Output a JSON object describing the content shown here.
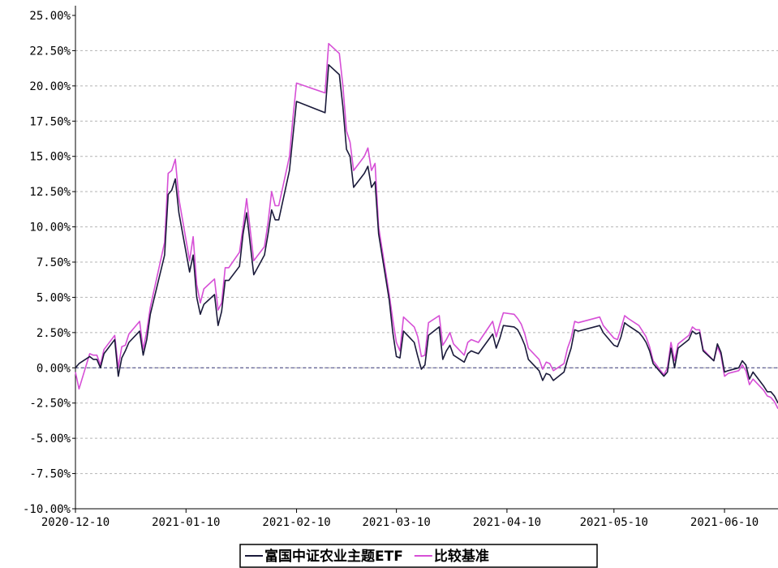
{
  "chart_data": {
    "type": "line",
    "title": "",
    "xlabel": "",
    "ylabel": "",
    "x_range": [
      "2020-12-10",
      "2021-06-25"
    ],
    "ylim": [
      -10,
      25
    ],
    "y_tick_labels": [
      "25.00%",
      "22.50%",
      "20.00%",
      "17.50%",
      "15.00%",
      "12.50%",
      "10.00%",
      "7.50%",
      "5.00%",
      "2.50%",
      "0.00%",
      "-2.50%",
      "-5.00%",
      "-7.50%",
      "-10.00%"
    ],
    "x_tick_labels": [
      "2020-12-10",
      "2021-01-10",
      "2021-02-10",
      "2021-03-10",
      "2021-04-10",
      "2021-05-10",
      "2021-06-10"
    ],
    "grid": true,
    "legend_position": "bottom-center",
    "series": [
      {
        "name": "富国中证农业主题ETF",
        "color": "#1a1a3a",
        "points": [
          [
            "2020-12-10",
            0.0
          ],
          [
            "2020-12-11",
            0.3
          ],
          [
            "2020-12-14",
            0.8
          ],
          [
            "2020-12-15",
            0.6
          ],
          [
            "2020-12-16",
            0.6
          ],
          [
            "2020-12-17",
            0.0
          ],
          [
            "2020-12-18",
            1.0
          ],
          [
            "2020-12-21",
            2.0
          ],
          [
            "2020-12-22",
            -0.6
          ],
          [
            "2020-12-23",
            0.7
          ],
          [
            "2020-12-24",
            1.2
          ],
          [
            "2020-12-25",
            1.8
          ],
          [
            "2020-12-28",
            2.6
          ],
          [
            "2020-12-29",
            0.9
          ],
          [
            "2020-12-30",
            2.0
          ],
          [
            "2020-12-31",
            3.8
          ],
          [
            "2021-01-04",
            8.0
          ],
          [
            "2021-01-05",
            12.3
          ],
          [
            "2021-01-06",
            12.6
          ],
          [
            "2021-01-07",
            13.4
          ],
          [
            "2021-01-08",
            11.0
          ],
          [
            "2021-01-11",
            6.8
          ],
          [
            "2021-01-12",
            8.0
          ],
          [
            "2021-01-13",
            5.0
          ],
          [
            "2021-01-14",
            3.8
          ],
          [
            "2021-01-15",
            4.5
          ],
          [
            "2021-01-18",
            5.2
          ],
          [
            "2021-01-19",
            3.0
          ],
          [
            "2021-01-20",
            4.0
          ],
          [
            "2021-01-21",
            6.2
          ],
          [
            "2021-01-22",
            6.2
          ],
          [
            "2021-01-25",
            7.2
          ],
          [
            "2021-01-26",
            9.5
          ],
          [
            "2021-01-27",
            11.0
          ],
          [
            "2021-01-28",
            8.8
          ],
          [
            "2021-01-29",
            6.6
          ],
          [
            "2021-02-01",
            8.0
          ],
          [
            "2021-02-02",
            9.5
          ],
          [
            "2021-02-03",
            11.2
          ],
          [
            "2021-02-04",
            10.5
          ],
          [
            "2021-02-05",
            10.5
          ],
          [
            "2021-02-08",
            14.0
          ],
          [
            "2021-02-09",
            16.5
          ],
          [
            "2021-02-10",
            18.9
          ],
          [
            "2021-02-18",
            18.1
          ],
          [
            "2021-02-19",
            21.5
          ],
          [
            "2021-02-22",
            20.8
          ],
          [
            "2021-02-23",
            18.5
          ],
          [
            "2021-02-24",
            15.5
          ],
          [
            "2021-02-25",
            15.0
          ],
          [
            "2021-02-26",
            12.8
          ],
          [
            "2021-03-01",
            13.8
          ],
          [
            "2021-03-02",
            14.3
          ],
          [
            "2021-03-03",
            12.8
          ],
          [
            "2021-03-04",
            13.2
          ],
          [
            "2021-03-05",
            9.5
          ],
          [
            "2021-03-08",
            4.8
          ],
          [
            "2021-03-09",
            2.5
          ],
          [
            "2021-03-10",
            0.8
          ],
          [
            "2021-03-11",
            0.7
          ],
          [
            "2021-03-12",
            2.6
          ],
          [
            "2021-03-15",
            1.8
          ],
          [
            "2021-03-16",
            0.8
          ],
          [
            "2021-03-17",
            -0.1
          ],
          [
            "2021-03-18",
            0.2
          ],
          [
            "2021-03-19",
            2.3
          ],
          [
            "2021-03-22",
            2.9
          ],
          [
            "2021-03-23",
            0.6
          ],
          [
            "2021-03-24",
            1.2
          ],
          [
            "2021-03-25",
            1.6
          ],
          [
            "2021-03-26",
            0.9
          ],
          [
            "2021-03-29",
            0.4
          ],
          [
            "2021-03-30",
            1.0
          ],
          [
            "2021-03-31",
            1.2
          ],
          [
            "2021-04-01",
            1.1
          ],
          [
            "2021-04-02",
            1.0
          ],
          [
            "2021-04-06",
            2.4
          ],
          [
            "2021-04-07",
            1.4
          ],
          [
            "2021-04-08",
            2.1
          ],
          [
            "2021-04-09",
            3.0
          ],
          [
            "2021-04-12",
            2.9
          ],
          [
            "2021-04-13",
            2.7
          ],
          [
            "2021-04-14",
            2.2
          ],
          [
            "2021-04-15",
            1.6
          ],
          [
            "2021-04-16",
            0.6
          ],
          [
            "2021-04-19",
            -0.2
          ],
          [
            "2021-04-20",
            -0.9
          ],
          [
            "2021-04-21",
            -0.4
          ],
          [
            "2021-04-22",
            -0.5
          ],
          [
            "2021-04-23",
            -0.9
          ],
          [
            "2021-04-26",
            -0.3
          ],
          [
            "2021-04-27",
            0.6
          ],
          [
            "2021-04-28",
            1.4
          ],
          [
            "2021-04-29",
            2.7
          ],
          [
            "2021-04-30",
            2.6
          ],
          [
            "2021-05-06",
            3.0
          ],
          [
            "2021-05-07",
            2.5
          ],
          [
            "2021-05-10",
            1.6
          ],
          [
            "2021-05-11",
            1.5
          ],
          [
            "2021-05-12",
            2.2
          ],
          [
            "2021-05-13",
            3.2
          ],
          [
            "2021-05-14",
            3.0
          ],
          [
            "2021-05-17",
            2.5
          ],
          [
            "2021-05-18",
            2.2
          ],
          [
            "2021-05-19",
            1.8
          ],
          [
            "2021-05-20",
            1.2
          ],
          [
            "2021-05-21",
            0.3
          ],
          [
            "2021-05-24",
            -0.6
          ],
          [
            "2021-05-25",
            -0.3
          ],
          [
            "2021-05-26",
            1.4
          ],
          [
            "2021-05-27",
            0.0
          ],
          [
            "2021-05-28",
            1.4
          ],
          [
            "2021-05-31",
            2.0
          ],
          [
            "2021-06-01",
            2.6
          ],
          [
            "2021-06-02",
            2.4
          ],
          [
            "2021-06-03",
            2.5
          ],
          [
            "2021-06-04",
            1.2
          ],
          [
            "2021-06-07",
            0.5
          ],
          [
            "2021-06-08",
            1.7
          ],
          [
            "2021-06-09",
            1.1
          ],
          [
            "2021-06-10",
            -0.3
          ],
          [
            "2021-06-11",
            -0.2
          ],
          [
            "2021-06-14",
            0.0
          ],
          [
            "2021-06-15",
            0.5
          ],
          [
            "2021-06-16",
            0.2
          ],
          [
            "2021-06-17",
            -0.8
          ],
          [
            "2021-06-18",
            -0.3
          ],
          [
            "2021-06-21",
            -1.3
          ],
          [
            "2021-06-22",
            -1.7
          ],
          [
            "2021-06-23",
            -1.7
          ],
          [
            "2021-06-24",
            -2.0
          ],
          [
            "2021-06-25",
            -2.5
          ]
        ]
      },
      {
        "name": "比较基准",
        "color": "#d64fd6",
        "points": [
          [
            "2020-12-10",
            -0.3
          ],
          [
            "2020-12-11",
            -1.5
          ],
          [
            "2020-12-14",
            1.0
          ],
          [
            "2020-12-15",
            0.9
          ],
          [
            "2020-12-16",
            0.9
          ],
          [
            "2020-12-17",
            0.2
          ],
          [
            "2020-12-18",
            1.3
          ],
          [
            "2020-12-21",
            2.3
          ],
          [
            "2020-12-22",
            0.0
          ],
          [
            "2020-12-23",
            1.5
          ],
          [
            "2020-12-24",
            1.6
          ],
          [
            "2020-12-25",
            2.4
          ],
          [
            "2020-12-28",
            3.3
          ],
          [
            "2020-12-29",
            1.3
          ],
          [
            "2020-12-30",
            2.6
          ],
          [
            "2020-12-31",
            4.3
          ],
          [
            "2021-01-04",
            8.9
          ],
          [
            "2021-01-05",
            13.8
          ],
          [
            "2021-01-06",
            14.0
          ],
          [
            "2021-01-07",
            14.8
          ],
          [
            "2021-01-08",
            12.0
          ],
          [
            "2021-01-11",
            7.6
          ],
          [
            "2021-01-12",
            9.3
          ],
          [
            "2021-01-13",
            5.9
          ],
          [
            "2021-01-14",
            4.6
          ],
          [
            "2021-01-15",
            5.6
          ],
          [
            "2021-01-18",
            6.3
          ],
          [
            "2021-01-19",
            4.1
          ],
          [
            "2021-01-20",
            4.6
          ],
          [
            "2021-01-21",
            7.1
          ],
          [
            "2021-01-22",
            7.1
          ],
          [
            "2021-01-25",
            8.2
          ],
          [
            "2021-01-26",
            10.0
          ],
          [
            "2021-01-27",
            12.0
          ],
          [
            "2021-01-28",
            9.8
          ],
          [
            "2021-01-29",
            7.6
          ],
          [
            "2021-02-01",
            8.6
          ],
          [
            "2021-02-02",
            10.3
          ],
          [
            "2021-02-03",
            12.5
          ],
          [
            "2021-02-04",
            11.5
          ],
          [
            "2021-02-05",
            11.5
          ],
          [
            "2021-02-08",
            15.0
          ],
          [
            "2021-02-09",
            17.8
          ],
          [
            "2021-02-10",
            20.2
          ],
          [
            "2021-02-18",
            19.5
          ],
          [
            "2021-02-19",
            23.0
          ],
          [
            "2021-02-22",
            22.3
          ],
          [
            "2021-02-23",
            20.0
          ],
          [
            "2021-02-24",
            16.8
          ],
          [
            "2021-02-25",
            16.0
          ],
          [
            "2021-02-26",
            14.0
          ],
          [
            "2021-03-01",
            15.0
          ],
          [
            "2021-03-02",
            15.6
          ],
          [
            "2021-03-03",
            14.0
          ],
          [
            "2021-03-04",
            14.5
          ],
          [
            "2021-03-05",
            10.0
          ],
          [
            "2021-03-08",
            5.2
          ],
          [
            "2021-03-09",
            3.4
          ],
          [
            "2021-03-10",
            1.8
          ],
          [
            "2021-03-11",
            1.2
          ],
          [
            "2021-03-12",
            3.6
          ],
          [
            "2021-03-15",
            2.9
          ],
          [
            "2021-03-16",
            2.2
          ],
          [
            "2021-03-17",
            0.8
          ],
          [
            "2021-03-18",
            0.9
          ],
          [
            "2021-03-19",
            3.2
          ],
          [
            "2021-03-22",
            3.7
          ],
          [
            "2021-03-23",
            1.6
          ],
          [
            "2021-03-24",
            2.0
          ],
          [
            "2021-03-25",
            2.5
          ],
          [
            "2021-03-26",
            1.7
          ],
          [
            "2021-03-29",
            0.9
          ],
          [
            "2021-03-30",
            1.8
          ],
          [
            "2021-03-31",
            2.0
          ],
          [
            "2021-04-01",
            1.9
          ],
          [
            "2021-04-02",
            1.8
          ],
          [
            "2021-04-06",
            3.3
          ],
          [
            "2021-04-07",
            2.2
          ],
          [
            "2021-04-08",
            3.1
          ],
          [
            "2021-04-09",
            3.9
          ],
          [
            "2021-04-12",
            3.8
          ],
          [
            "2021-04-13",
            3.5
          ],
          [
            "2021-04-14",
            3.1
          ],
          [
            "2021-04-15",
            2.4
          ],
          [
            "2021-04-16",
            1.4
          ],
          [
            "2021-04-19",
            0.6
          ],
          [
            "2021-04-20",
            -0.1
          ],
          [
            "2021-04-21",
            0.4
          ],
          [
            "2021-04-22",
            0.3
          ],
          [
            "2021-04-23",
            -0.2
          ],
          [
            "2021-04-26",
            0.3
          ],
          [
            "2021-04-27",
            1.4
          ],
          [
            "2021-04-28",
            2.1
          ],
          [
            "2021-04-29",
            3.3
          ],
          [
            "2021-04-30",
            3.2
          ],
          [
            "2021-05-06",
            3.6
          ],
          [
            "2021-05-07",
            3.0
          ],
          [
            "2021-05-10",
            2.1
          ],
          [
            "2021-05-11",
            2.0
          ],
          [
            "2021-05-12",
            2.8
          ],
          [
            "2021-05-13",
            3.7
          ],
          [
            "2021-05-14",
            3.5
          ],
          [
            "2021-05-17",
            3.0
          ],
          [
            "2021-05-18",
            2.6
          ],
          [
            "2021-05-19",
            2.2
          ],
          [
            "2021-05-20",
            1.5
          ],
          [
            "2021-05-21",
            0.5
          ],
          [
            "2021-05-24",
            -0.5
          ],
          [
            "2021-05-25",
            0.0
          ],
          [
            "2021-05-26",
            1.8
          ],
          [
            "2021-05-27",
            0.5
          ],
          [
            "2021-05-28",
            1.7
          ],
          [
            "2021-05-31",
            2.3
          ],
          [
            "2021-06-01",
            2.9
          ],
          [
            "2021-06-02",
            2.7
          ],
          [
            "2021-06-03",
            2.7
          ],
          [
            "2021-06-04",
            1.3
          ],
          [
            "2021-06-07",
            0.5
          ],
          [
            "2021-06-08",
            1.5
          ],
          [
            "2021-06-09",
            0.9
          ],
          [
            "2021-06-10",
            -0.6
          ],
          [
            "2021-06-11",
            -0.4
          ],
          [
            "2021-06-14",
            -0.2
          ],
          [
            "2021-06-15",
            0.2
          ],
          [
            "2021-06-16",
            -0.2
          ],
          [
            "2021-06-17",
            -1.2
          ],
          [
            "2021-06-18",
            -0.8
          ],
          [
            "2021-06-21",
            -1.6
          ],
          [
            "2021-06-22",
            -2.0
          ],
          [
            "2021-06-23",
            -2.1
          ],
          [
            "2021-06-24",
            -2.4
          ],
          [
            "2021-06-25",
            -2.9
          ]
        ]
      }
    ]
  }
}
